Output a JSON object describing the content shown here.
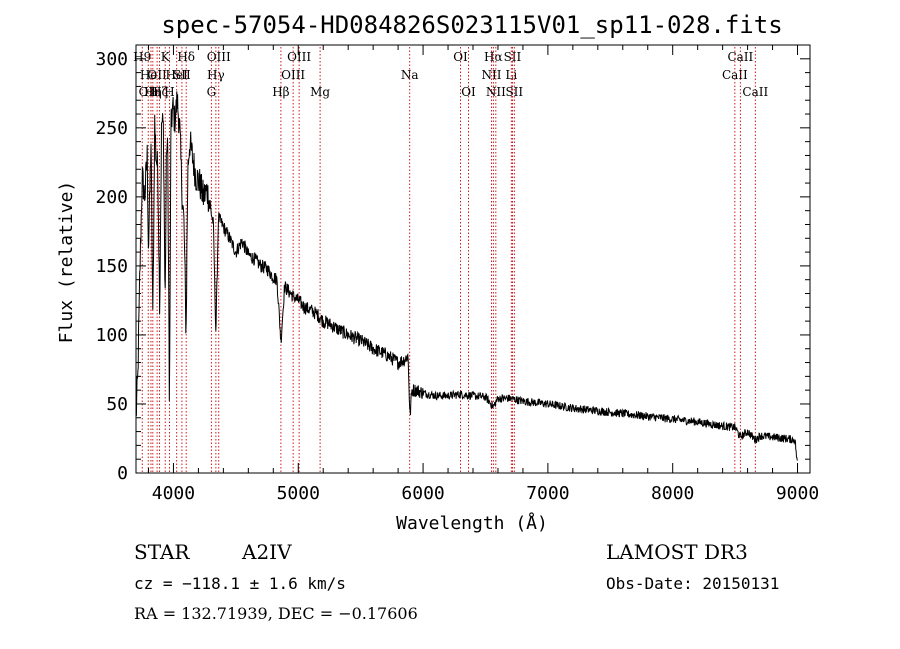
{
  "chart_data": {
    "type": "line",
    "title": "spec-57054-HD084826S023115V01_sp11-028.fits",
    "xlabel": "Wavelength (Å)",
    "ylabel": "Flux (relative)",
    "xlim": [
      3700,
      9100
    ],
    "ylim": [
      0,
      310
    ],
    "xticks": [
      4000,
      5000,
      6000,
      7000,
      8000,
      9000
    ],
    "xtick_labels": [
      "4000",
      "5000",
      "6000",
      "7000",
      "8000",
      "9000"
    ],
    "yticks": [
      0,
      50,
      100,
      150,
      200,
      250,
      300
    ],
    "ytick_labels": [
      "0",
      "50",
      "100",
      "150",
      "200",
      "250",
      "300"
    ],
    "spectrum_anchors": [
      [
        3700,
        40
      ],
      [
        3715,
        70
      ],
      [
        3730,
        140
      ],
      [
        3750,
        215
      ],
      [
        3770,
        200
      ],
      [
        3790,
        230
      ],
      [
        3800,
        160
      ],
      [
        3820,
        240
      ],
      [
        3835,
        110
      ],
      [
        3850,
        255
      ],
      [
        3860,
        230
      ],
      [
        3875,
        220
      ],
      [
        3890,
        120
      ],
      [
        3905,
        255
      ],
      [
        3920,
        250
      ],
      [
        3933,
        120
      ],
      [
        3945,
        240
      ],
      [
        3955,
        230
      ],
      [
        3968,
        40
      ],
      [
        3980,
        250
      ],
      [
        3995,
        265
      ],
      [
        4010,
        255
      ],
      [
        4030,
        270
      ],
      [
        4050,
        250
      ],
      [
        4070,
        200
      ],
      [
        4085,
        180
      ],
      [
        4101,
        100
      ],
      [
        4115,
        220
      ],
      [
        4130,
        240
      ],
      [
        4150,
        230
      ],
      [
        4180,
        215
      ],
      [
        4210,
        210
      ],
      [
        4240,
        200
      ],
      [
        4270,
        205
      ],
      [
        4300,
        190
      ],
      [
        4320,
        180
      ],
      [
        4340,
        100
      ],
      [
        4360,
        185
      ],
      [
        4390,
        180
      ],
      [
        4420,
        175
      ],
      [
        4450,
        170
      ],
      [
        4500,
        160
      ],
      [
        4550,
        168
      ],
      [
        4600,
        158
      ],
      [
        4650,
        155
      ],
      [
        4700,
        150
      ],
      [
        4750,
        148
      ],
      [
        4800,
        142
      ],
      [
        4830,
        140
      ],
      [
        4861,
        95
      ],
      [
        4890,
        135
      ],
      [
        4920,
        132
      ],
      [
        4960,
        128
      ],
      [
        5000,
        125
      ],
      [
        5050,
        120
      ],
      [
        5100,
        118
      ],
      [
        5150,
        115
      ],
      [
        5200,
        110
      ],
      [
        5250,
        108
      ],
      [
        5300,
        105
      ],
      [
        5400,
        100
      ],
      [
        5500,
        96
      ],
      [
        5600,
        90
      ],
      [
        5700,
        86
      ],
      [
        5800,
        80
      ],
      [
        5850,
        82
      ],
      [
        5880,
        85
      ],
      [
        5895,
        40
      ],
      [
        5910,
        60
      ],
      [
        5950,
        60
      ],
      [
        6000,
        58
      ],
      [
        6100,
        56
      ],
      [
        6200,
        56
      ],
      [
        6300,
        57
      ],
      [
        6400,
        56
      ],
      [
        6500,
        55
      ],
      [
        6563,
        48
      ],
      [
        6600,
        54
      ],
      [
        6700,
        54
      ],
      [
        6800,
        52
      ],
      [
        7000,
        50
      ],
      [
        7200,
        47
      ],
      [
        7400,
        45
      ],
      [
        7600,
        43
      ],
      [
        7800,
        41
      ],
      [
        8000,
        39
      ],
      [
        8200,
        37
      ],
      [
        8400,
        34
      ],
      [
        8500,
        33
      ],
      [
        8542,
        26
      ],
      [
        8600,
        30
      ],
      [
        8662,
        24
      ],
      [
        8700,
        27
      ],
      [
        8800,
        26
      ],
      [
        8900,
        25
      ],
      [
        8980,
        24
      ],
      [
        9000,
        5
      ]
    ],
    "line_markers": [
      {
        "wave": 3750,
        "label": "H9",
        "row": 0
      },
      {
        "wave": 3798,
        "label": "OII",
        "row": 2
      },
      {
        "wave": 3820,
        "label": "HeI",
        "row": 1
      },
      {
        "wave": 3835,
        "label": "Hη",
        "row": 2
      },
      {
        "wave": 3869,
        "label": "OII",
        "row": 1
      },
      {
        "wave": 3889,
        "label": "Hζ",
        "row": 2
      },
      {
        "wave": 3934,
        "label": "K",
        "row": 0
      },
      {
        "wave": 3968,
        "label": "H",
        "row": 2
      },
      {
        "wave": 4026,
        "label": "HeI",
        "row": 1
      },
      {
        "wave": 4068,
        "label": "SII",
        "row": 1
      },
      {
        "wave": 4102,
        "label": "Hδ",
        "row": 0
      },
      {
        "wave": 4304,
        "label": "G",
        "row": 2
      },
      {
        "wave": 4340,
        "label": "Hγ",
        "row": 1
      },
      {
        "wave": 4363,
        "label": "OIII",
        "row": 0
      },
      {
        "wave": 4861,
        "label": "Hβ",
        "row": 2
      },
      {
        "wave": 4959,
        "label": "OIII",
        "row": 1
      },
      {
        "wave": 5007,
        "label": "OIII",
        "row": 0
      },
      {
        "wave": 5175,
        "label": "Mg",
        "row": 2
      },
      {
        "wave": 5893,
        "label": "Na",
        "row": 1
      },
      {
        "wave": 6300,
        "label": "OI",
        "row": 0
      },
      {
        "wave": 6364,
        "label": "OI",
        "row": 2
      },
      {
        "wave": 6548,
        "label": "NII",
        "row": 1
      },
      {
        "wave": 6563,
        "label": "Hα",
        "row": 0
      },
      {
        "wave": 6583,
        "label": "NII",
        "row": 2
      },
      {
        "wave": 6707,
        "label": "Li",
        "row": 1
      },
      {
        "wave": 6716,
        "label": "SII",
        "row": 0
      },
      {
        "wave": 6731,
        "label": "SII",
        "row": 2
      },
      {
        "wave": 8498,
        "label": "CaII",
        "row": 1
      },
      {
        "wave": 8542,
        "label": "CaII",
        "row": 0
      },
      {
        "wave": 8662,
        "label": "CaII",
        "row": 2
      }
    ]
  },
  "info": {
    "object_class": "STAR",
    "subclass": "A2IV",
    "survey": "LAMOST DR3",
    "redshift": "cz = −118.1 ± 1.6 km/s",
    "obs_date": "Obs-Date: 20150131",
    "coords": "RA = 132.71939, DEC =  −0.17606"
  },
  "colors": {
    "spectrum": "#000000",
    "marker": "#cc0000",
    "axis": "#000000",
    "background": "#ffffff"
  }
}
